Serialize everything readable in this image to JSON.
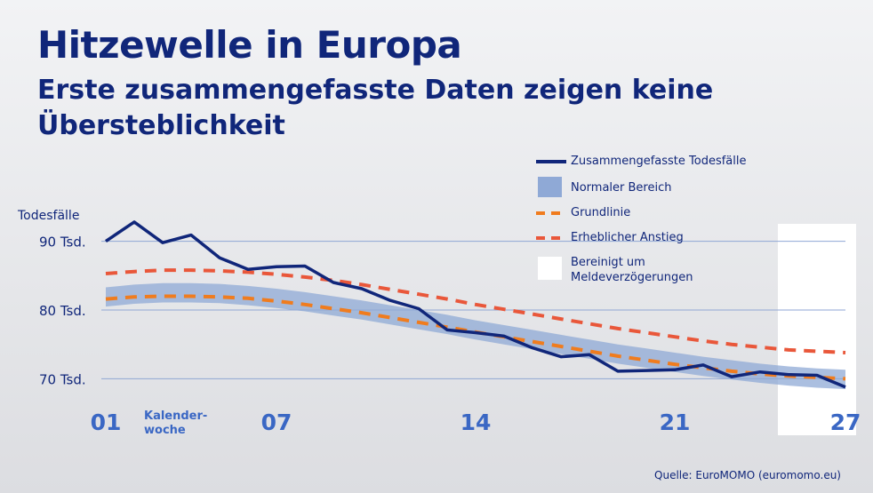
{
  "title": "Hitzewelle in Europa",
  "subtitle": "Erste zusammengefasste Daten zeigen keine Übersteblichkeit",
  "source": "Quelle: EuroMOMO (euromomo.eu)",
  "colors": {
    "title": "#10267a",
    "deaths": "#10267a",
    "normal_range": "#8fa9d6",
    "baseline": "#f07c1e",
    "significant_increase": "#e9573a",
    "adjusted": "#ffffff",
    "tick_labels": "#3a67c4",
    "grid": "#8fa6d4"
  },
  "chart_data": {
    "type": "line",
    "title": "Hitzewelle in Europa",
    "ylabel": "Todesfälle",
    "xlabel": "Kalender-woche",
    "ylim": [
      68.5,
      91.5
    ],
    "xlim": [
      1,
      27
    ],
    "y_ticks": [
      {
        "value": 90,
        "label": "90 Tsd."
      },
      {
        "value": 80,
        "label": "80 Tsd."
      },
      {
        "value": 70,
        "label": "70 Tsd."
      }
    ],
    "x_ticks": [
      {
        "value": 1,
        "label": "01"
      },
      {
        "value": 7,
        "label": "07"
      },
      {
        "value": 14,
        "label": "14"
      },
      {
        "value": 21,
        "label": "21"
      },
      {
        "value": 27,
        "label": "27"
      }
    ],
    "xlabel_note": "Kalender-\nwoche",
    "grid": true,
    "legend_position": "top-right",
    "x": [
      1,
      2,
      3,
      4,
      5,
      6,
      7,
      8,
      9,
      10,
      11,
      12,
      13,
      14,
      15,
      16,
      17,
      18,
      19,
      20,
      21,
      22,
      23,
      24,
      25,
      26,
      27
    ],
    "series": [
      {
        "name": "Zusammengefasste Todesfälle",
        "style": "solid",
        "values": [
          90.0,
          92.8,
          89.8,
          90.9,
          87.6,
          85.9,
          86.3,
          86.4,
          84.0,
          83.1,
          81.4,
          80.2,
          77.1,
          76.7,
          76.2,
          74.5,
          73.2,
          73.5,
          71.1,
          71.2,
          71.3,
          72.0,
          70.3,
          71.0,
          70.6,
          70.5,
          68.8
        ]
      },
      {
        "name": "Normaler Bereich",
        "style": "band",
        "lower": [
          80.5,
          80.9,
          81.1,
          81.1,
          81.0,
          80.7,
          80.3,
          79.8,
          79.2,
          78.6,
          77.9,
          77.2,
          76.5,
          75.7,
          75.0,
          74.3,
          73.6,
          72.9,
          72.2,
          71.6,
          71.0,
          70.4,
          69.9,
          69.4,
          69.0,
          68.7,
          68.5
        ],
        "upper": [
          83.3,
          83.7,
          83.9,
          83.9,
          83.8,
          83.5,
          83.1,
          82.6,
          82.0,
          81.4,
          80.7,
          80.0,
          79.3,
          78.5,
          77.8,
          77.1,
          76.4,
          75.7,
          75.0,
          74.4,
          73.8,
          73.2,
          72.7,
          72.2,
          71.8,
          71.5,
          71.3
        ]
      },
      {
        "name": "Grundlinie",
        "style": "dashed",
        "values": [
          81.6,
          81.9,
          82.0,
          82.0,
          81.9,
          81.7,
          81.3,
          80.8,
          80.2,
          79.6,
          78.9,
          78.2,
          77.5,
          76.8,
          76.1,
          75.4,
          74.7,
          74.0,
          73.3,
          72.7,
          72.1,
          71.6,
          71.1,
          70.7,
          70.4,
          70.2,
          70.0
        ]
      },
      {
        "name": "Erheblicher Anstieg",
        "style": "dashed",
        "values": [
          85.3,
          85.6,
          85.8,
          85.8,
          85.7,
          85.5,
          85.2,
          84.8,
          84.3,
          83.7,
          83.0,
          82.3,
          81.6,
          80.8,
          80.1,
          79.4,
          78.7,
          78.0,
          77.3,
          76.7,
          76.1,
          75.5,
          75.0,
          74.6,
          74.2,
          74.0,
          73.8
        ]
      },
      {
        "name": "Bereinigt um Meldeverzögerungen",
        "style": "shaded-region",
        "x_range": [
          25,
          27
        ]
      }
    ]
  }
}
